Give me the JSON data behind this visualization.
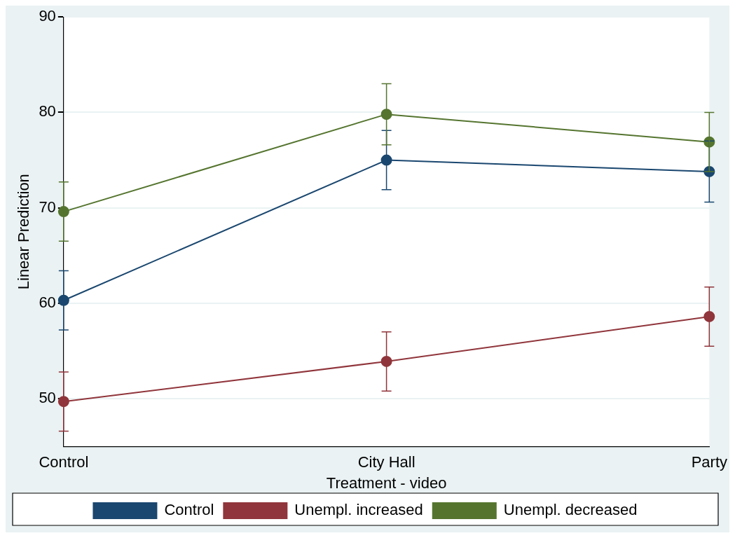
{
  "chart_data": {
    "type": "line",
    "xlabel": "Treatment - video",
    "ylabel": "Linear Prediction",
    "categories": [
      "Control",
      "City Hall",
      "Party"
    ],
    "ylim": [
      45,
      90
    ],
    "yticks": [
      50,
      60,
      70,
      80,
      90
    ],
    "grid": "y",
    "legend": "bottom",
    "marker": "circle",
    "line_style": "solid",
    "series": [
      {
        "name": "Control",
        "color": "#1a476f",
        "values": [
          60.3,
          75.0,
          73.8
        ],
        "errors": [
          3.1,
          3.1,
          3.2
        ]
      },
      {
        "name": "Unempl. increased",
        "color": "#90353b",
        "values": [
          49.7,
          53.9,
          58.6
        ],
        "errors": [
          3.1,
          3.1,
          3.1
        ]
      },
      {
        "name": "Unempl. decreased",
        "color": "#55752f",
        "values": [
          69.6,
          79.8,
          76.9
        ],
        "errors": [
          3.1,
          3.2,
          3.1
        ]
      }
    ]
  }
}
